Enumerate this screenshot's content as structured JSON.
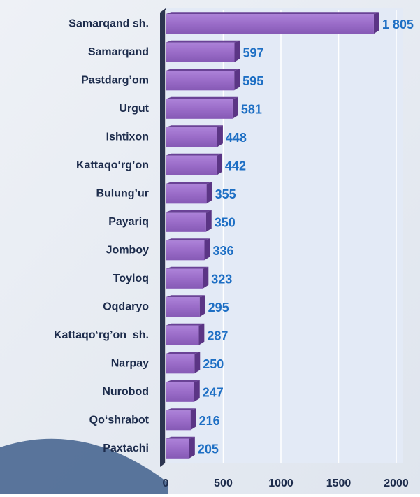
{
  "chart_data": {
    "type": "bar",
    "orientation": "horizontal",
    "categories": [
      "Samarqand sh.",
      "Samarqand",
      "Pastdarg’om",
      "Urgut",
      "Ishtixon",
      "Kattaqo‘rg’on",
      "Bulung’ur",
      "Payariq",
      "Jomboy",
      "Toyloq",
      "Oqdaryo",
      "Kattaqo‘rg’on  sh.",
      "Narpay",
      "Nurobod",
      "Qo‘shrabot",
      "Paxtachi"
    ],
    "values": [
      1805,
      597,
      595,
      581,
      448,
      442,
      355,
      350,
      336,
      323,
      295,
      287,
      250,
      247,
      216,
      205
    ],
    "value_labels": [
      "1 805",
      "597",
      "595",
      "581",
      "448",
      "442",
      "355",
      "350",
      "336",
      "323",
      "295",
      "287",
      "250",
      "247",
      "216",
      "205"
    ],
    "color": "#9a6cc8",
    "xlim": [
      0,
      2000
    ],
    "xticks": [
      0,
      500,
      1000,
      1500,
      2000
    ],
    "grid": true
  }
}
